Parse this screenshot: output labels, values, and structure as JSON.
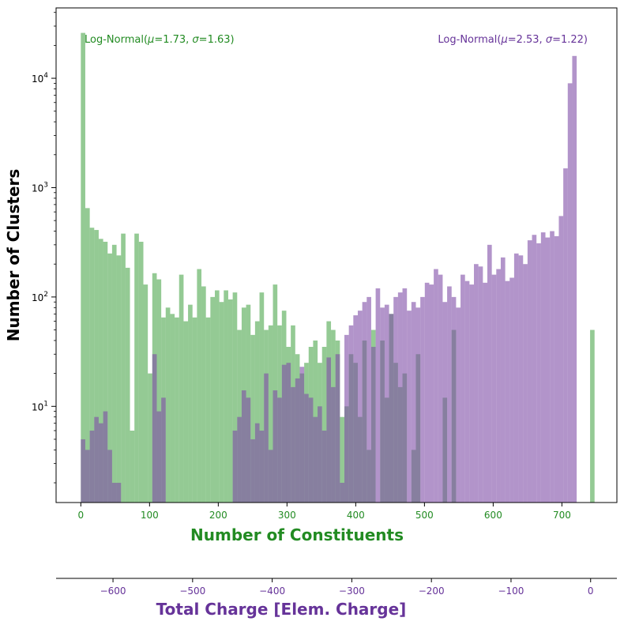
{
  "chart_data": {
    "type": "bar",
    "subtype": "overlaid histogram, log-scale y, twin x-axes",
    "colors": {
      "green_series": "#4ca64c",
      "green_alpha": 0.6,
      "purple_series": "#7f4ca6",
      "purple_alpha": 0.6,
      "overlap": "#7a7a96",
      "green_text": "#228b22",
      "purple_text": "#663399"
    },
    "xlabel": "Number of Constituents",
    "x2label": "Total Charge [Elem. Charge]",
    "ylabel": "Number of Clusters",
    "x_ticks": [
      0,
      100,
      200,
      300,
      400,
      500,
      600,
      700
    ],
    "x2_ticks": [
      -600,
      -500,
      -400,
      -300,
      -200,
      -100,
      0
    ],
    "x2_tick_labels": [
      "−600",
      "−500",
      "−400",
      "−300",
      "−200",
      "−100",
      "0"
    ],
    "y_major_ticks": [
      10,
      100,
      1000,
      10000
    ],
    "y_major_exponents": [
      "1",
      "2",
      "3",
      "4"
    ],
    "y_scale": "log",
    "xlim": [
      -36,
      780
    ],
    "x2lim": [
      -671.5,
      33
    ],
    "ylim": [
      1.32,
      44000
    ],
    "grid": false,
    "legend": "none",
    "annotations": [
      {
        "prefix": "Log-Normal(",
        "mu_sym": "μ",
        "mu_val": "=1.73, ",
        "sigma_sym": "σ",
        "sigma_val": "=1.63)",
        "series": "green",
        "position": "top-left"
      },
      {
        "prefix": "Log-Normal(",
        "mu_sym": "μ",
        "mu_val": "=2.53, ",
        "sigma_sym": "σ",
        "sigma_val": "=1.22)",
        "series": "purple",
        "position": "top-right"
      }
    ],
    "bin_start": 0,
    "bin_width": 6.5,
    "green_counts": [
      26000,
      650,
      430,
      410,
      340,
      320,
      250,
      300,
      240,
      380,
      185,
      6,
      380,
      320,
      130,
      20,
      165,
      145,
      65,
      80,
      70,
      65,
      160,
      60,
      85,
      65,
      180,
      125,
      65,
      100,
      115,
      90,
      115,
      95,
      110,
      50,
      80,
      85,
      45,
      60,
      110,
      50,
      55,
      130,
      55,
      75,
      35,
      55,
      30,
      20,
      25,
      35,
      40
    ],
    "purple_counts": [
      5,
      4,
      6,
      8,
      7,
      9,
      4,
      2,
      2,
      0,
      0,
      0,
      0,
      0,
      0,
      0,
      0,
      0,
      0,
      0,
      0,
      0,
      0,
      0,
      0,
      0,
      0,
      0,
      0,
      0,
      0,
      0,
      0,
      0,
      0,
      0,
      0,
      0,
      0,
      0,
      0,
      0,
      0,
      0,
      0,
      0,
      0,
      0,
      0,
      0,
      0,
      0,
      0,
      0,
      0,
      0,
      0,
      0,
      0,
      0,
      0,
      0,
      0,
      0,
      0,
      0,
      0,
      0,
      0,
      0,
      0,
      0,
      0,
      0,
      0,
      0,
      0,
      0,
      0,
      0,
      0,
      0,
      0,
      0,
      0,
      0,
      0,
      0,
      0,
      0,
      0,
      0,
      0,
      0,
      0,
      0,
      0,
      0,
      0,
      0,
      0,
      0,
      0,
      0,
      0,
      0,
      0,
      0,
      0,
      0,
      0,
      0,
      0,
      0,
      0
    ],
    "purple_full": [
      5,
      4,
      6,
      8,
      7,
      9,
      4,
      2,
      2,
      0,
      0,
      0,
      0,
      0,
      0,
      0,
      30,
      9,
      12,
      0,
      0,
      0,
      0,
      0,
      0,
      0,
      0,
      0,
      0,
      0,
      0,
      0,
      0,
      0,
      6,
      8,
      14,
      12,
      5,
      7,
      6,
      20,
      4,
      14,
      12,
      24,
      25,
      15,
      18,
      23,
      13,
      12,
      8,
      10,
      6,
      28,
      15,
      30,
      2,
      45,
      55,
      68,
      75,
      90,
      100,
      35,
      120,
      80,
      85,
      70,
      100,
      110,
      120,
      75,
      90,
      80,
      100,
      135,
      130,
      180,
      160,
      90,
      125,
      100,
      80,
      160,
      140,
      130,
      200,
      190,
      135,
      300,
      160,
      180,
      230,
      140,
      150,
      250,
      240,
      200,
      330,
      370,
      310,
      390,
      350,
      400,
      360,
      550,
      1500,
      9000,
      16000
    ],
    "green_full": [
      26000,
      650,
      430,
      410,
      340,
      320,
      250,
      300,
      240,
      380,
      185,
      6,
      380,
      320,
      130,
      20,
      165,
      145,
      65,
      80,
      70,
      65,
      160,
      60,
      85,
      65,
      180,
      125,
      65,
      100,
      115,
      90,
      115,
      95,
      110,
      50,
      80,
      85,
      45,
      60,
      110,
      50,
      55,
      130,
      55,
      75,
      35,
      55,
      30,
      20,
      25,
      35,
      40,
      25,
      35,
      60,
      50,
      40,
      8,
      10,
      30,
      25,
      8,
      40,
      4,
      50,
      0,
      40,
      12,
      70,
      25,
      15,
      20,
      0,
      4,
      30,
      0,
      0,
      0,
      0,
      0,
      12,
      0,
      50,
      0,
      0,
      0,
      0,
      0,
      0,
      0,
      0,
      0,
      0,
      0,
      0,
      0,
      0,
      0,
      0,
      0,
      0,
      0,
      0,
      0,
      0,
      0,
      0,
      0,
      0,
      0,
      0,
      0,
      0,
      50,
      0
    ]
  }
}
